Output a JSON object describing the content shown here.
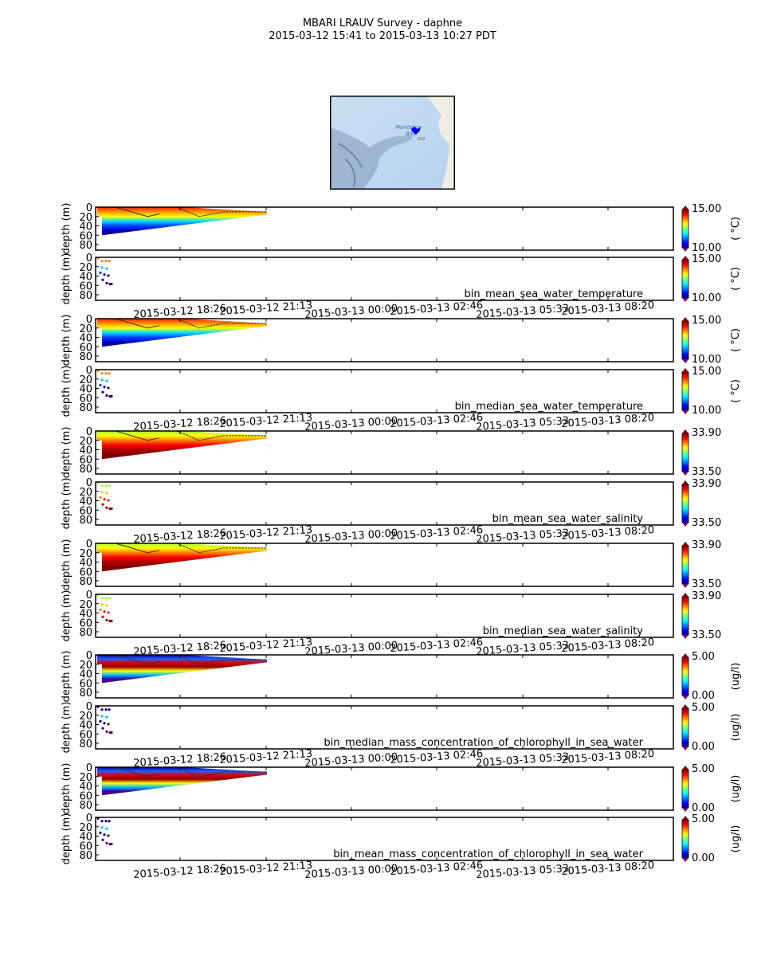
{
  "header": {
    "title": "MBARI LRAUV Survey - daphne",
    "subtitle": "2015-03-12 15:41  to  2015-03-13 10:27 PDT"
  },
  "map": {
    "bay_label_1": "Monterey",
    "bay_label_2": "Bay",
    "depth_label": "332",
    "track_color": "#0000ff"
  },
  "chart_data": {
    "type": "heatmap",
    "title": "MBARI LRAUV Survey - daphne",
    "xlabel": "",
    "ylabel": "depth (m)",
    "x_tick_labels": [
      "2015-03-12 18:26",
      "2015-03-12 21:13",
      "2015-03-13 00:00",
      "2015-03-13 02:46",
      "2015-03-13 05:33",
      "2015-03-13 08:20"
    ],
    "y_tick_labels": [
      "0",
      "20",
      "40",
      "60",
      "80"
    ],
    "ylim": [
      90,
      0
    ],
    "grid": false,
    "variables": [
      {
        "name": "bin_mean_sea_water_temperature",
        "units": "( °C)",
        "vmin": "10.00",
        "vmax": "15.00",
        "colormap": "jet"
      },
      {
        "name": "bin_median_sea_water_temperature",
        "units": "( °C)",
        "vmin": "10.00",
        "vmax": "15.00",
        "colormap": "jet"
      },
      {
        "name": "bin_mean_sea_water_salinity",
        "units": "",
        "vmin": "33.50",
        "vmax": "33.90",
        "colormap": "jet"
      },
      {
        "name": "bin_median_sea_water_salinity",
        "units": "",
        "vmin": "33.50",
        "vmax": "33.90",
        "colormap": "jet"
      },
      {
        "name": "bin_median_mass_concentration_of_chlorophyll_in_sea_water",
        "units": "(ug/l)",
        "vmin": "0.00",
        "vmax": "5.00",
        "colormap": "jet"
      },
      {
        "name": "bin_mean_mass_concentration_of_chlorophyll_in_sea_water",
        "units": "(ug/l)",
        "vmin": "0.00",
        "vmax": "5.00",
        "colormap": "jet"
      }
    ],
    "data_time_extent": "2015-03-12 15:41 to ~2015-03-12 21:13",
    "max_profile_depth": 60
  }
}
